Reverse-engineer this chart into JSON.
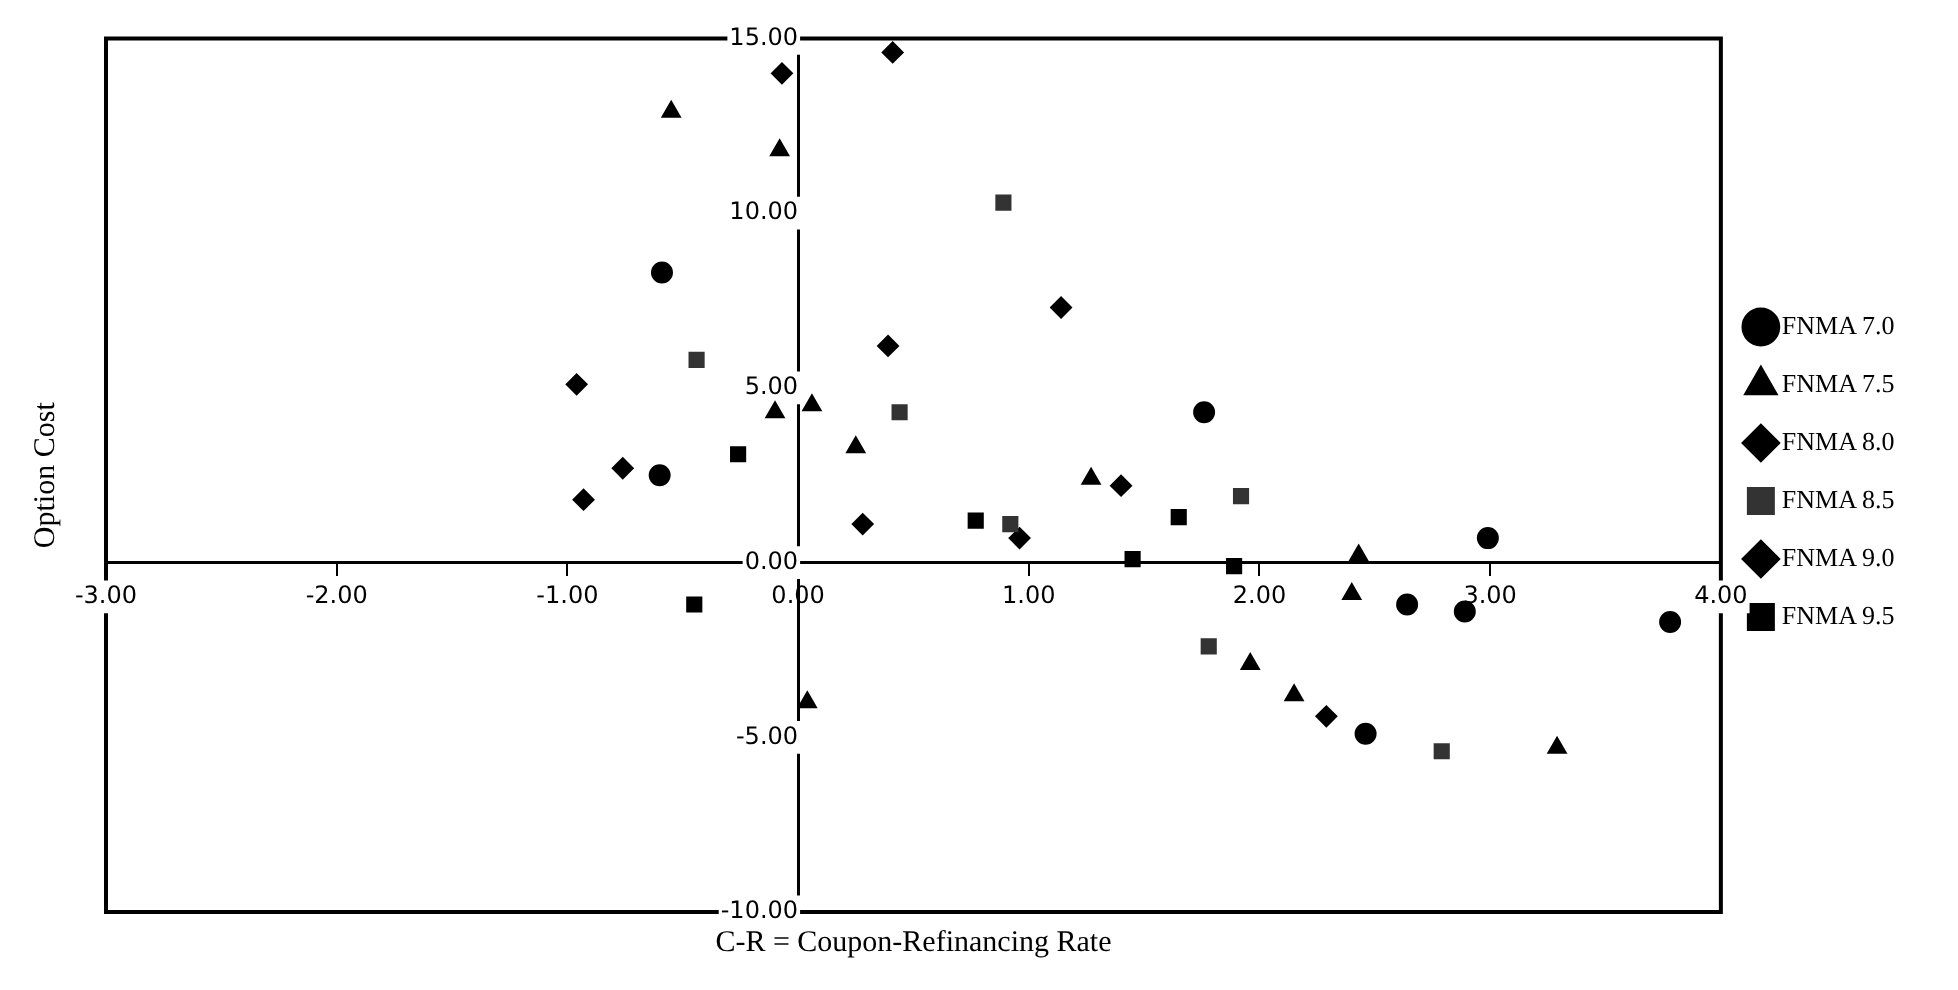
{
  "chart_data": {
    "type": "scatter",
    "xlabel": "C-R = Coupon-Refinancing Rate",
    "ylabel": "Option Cost",
    "xlim": [
      -3,
      4
    ],
    "ylim": [
      -10,
      15
    ],
    "xticks": [
      {
        "value": -3,
        "label": "-3.00"
      },
      {
        "value": -2,
        "label": "-2.00"
      },
      {
        "value": -1,
        "label": "-1.00"
      },
      {
        "value": 0,
        "label": "0.00"
      },
      {
        "value": 1,
        "label": "1.00"
      },
      {
        "value": 2,
        "label": "2.00"
      },
      {
        "value": 3,
        "label": "3.00"
      },
      {
        "value": 4,
        "label": "4.00"
      }
    ],
    "yticks": [
      {
        "value": -10,
        "label": "-10.00"
      },
      {
        "value": -5,
        "label": "-5.00"
      },
      {
        "value": 0,
        "label": "0.00"
      },
      {
        "value": 5,
        "label": "5.00"
      },
      {
        "value": 10,
        "label": "10.00"
      },
      {
        "value": 15,
        "label": "15.00"
      }
    ],
    "grid": false,
    "legend": "right",
    "series": [
      {
        "name": "FNMA 7.0",
        "color": "#000000",
        "marker": "circle",
        "x": [
          -0.59,
          -0.6,
          1.76,
          2.99,
          2.64,
          2.89,
          2.46,
          3.78
        ],
        "values": [
          8.3,
          2.5,
          4.3,
          0.7,
          -1.2,
          -1.4,
          -4.9,
          -1.7
        ]
      },
      {
        "name": "FNMA 7.5",
        "color": "#000000",
        "marker": "triangle",
        "x": [
          -0.55,
          -0.08,
          -0.1,
          0.06,
          0.25,
          1.27,
          2.43,
          2.4,
          1.96,
          2.15,
          3.29,
          0.04
        ],
        "values": [
          12.9,
          11.8,
          4.3,
          4.5,
          3.3,
          2.4,
          0.2,
          -0.9,
          -2.9,
          -3.8,
          -5.3,
          -4.0
        ]
      },
      {
        "name": "FNMA 8.0",
        "color": "#000000",
        "marker": "diamond",
        "x": [
          -0.07,
          0.41,
          -0.96,
          0.39,
          1.14,
          1.4
        ],
        "values": [
          14.0,
          14.6,
          5.1,
          6.2,
          7.3,
          2.2
        ]
      },
      {
        "name": "FNMA 8.5",
        "color": "#333333",
        "marker": "square",
        "x": [
          0.89,
          0.44,
          -0.44,
          0.92,
          1.92,
          1.78,
          2.79
        ],
        "values": [
          10.3,
          4.3,
          5.8,
          1.1,
          1.9,
          -2.4,
          -5.4
        ]
      },
      {
        "name": "FNMA 9.0",
        "color": "#000000",
        "marker": "diamond",
        "x": [
          -0.93,
          -0.76,
          0.28,
          0.96,
          2.29
        ],
        "values": [
          1.8,
          2.7,
          1.1,
          0.7,
          -4.4
        ]
      },
      {
        "name": "FNMA 9.5",
        "color": "#000000",
        "marker": "square",
        "x": [
          -0.26,
          -0.45,
          0.77,
          1.45,
          1.65,
          1.89
        ],
        "values": [
          3.1,
          -1.2,
          1.2,
          0.1,
          1.3,
          -0.1
        ]
      }
    ]
  }
}
